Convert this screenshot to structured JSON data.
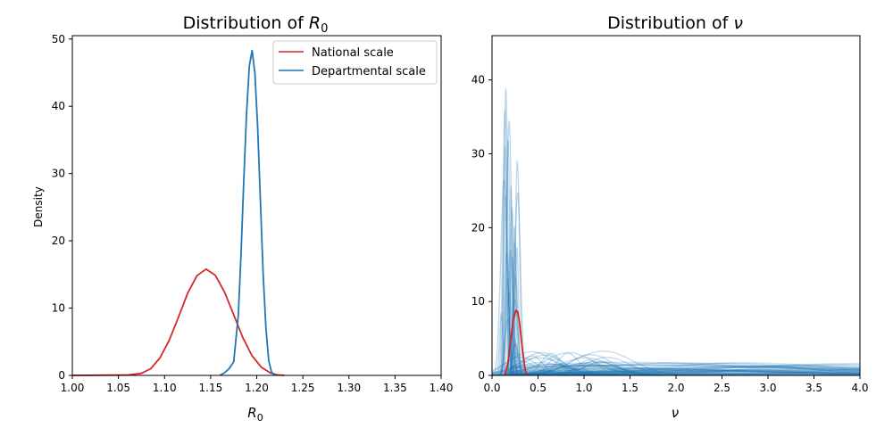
{
  "chart_data": [
    {
      "type": "line",
      "title_prefix": "Distribution of ",
      "title_symbol": "R",
      "title_sub": "0",
      "xlabel_symbol": "R",
      "xlabel_sub": "0",
      "ylabel": "Density",
      "xlim": [
        1.0,
        1.4
      ],
      "ylim": [
        0,
        50.5
      ],
      "xticks": [
        "1.00",
        "1.05",
        "1.10",
        "1.15",
        "1.20",
        "1.25",
        "1.30",
        "1.35",
        "1.40"
      ],
      "yticks": [
        "0",
        "10",
        "20",
        "30",
        "40",
        "50"
      ],
      "legend": {
        "placement": "top-right",
        "entries": [
          "National scale",
          "Departmental scale"
        ]
      },
      "series": [
        {
          "name": "National scale",
          "color": "#d62728",
          "x": [
            1.0,
            1.06,
            1.075,
            1.085,
            1.095,
            1.105,
            1.115,
            1.125,
            1.135,
            1.145,
            1.155,
            1.165,
            1.175,
            1.185,
            1.195,
            1.205,
            1.215,
            1.222,
            1.23
          ],
          "y": [
            0.0,
            0.05,
            0.3,
            1.0,
            2.6,
            5.2,
            8.6,
            12.2,
            14.8,
            15.8,
            14.9,
            12.4,
            9.0,
            5.6,
            2.9,
            1.2,
            0.35,
            0.08,
            0.0
          ]
        },
        {
          "name": "Departmental scale",
          "color": "#1f77b4",
          "x": [
            1.16,
            1.165,
            1.17,
            1.175,
            1.18,
            1.183,
            1.186,
            1.189,
            1.192,
            1.195,
            1.198,
            1.201,
            1.204,
            1.207,
            1.21,
            1.213,
            1.216,
            1.22
          ],
          "y": [
            0.0,
            0.4,
            1.0,
            2.0,
            9.0,
            18.0,
            29.0,
            39.0,
            46.0,
            48.3,
            45.0,
            37.0,
            26.0,
            15.0,
            7.0,
            2.2,
            0.5,
            0.0
          ]
        }
      ]
    },
    {
      "type": "line",
      "title_prefix": "Distribution of ",
      "title_symbol": "ν",
      "xlabel_symbol": "ν",
      "ylabel": "",
      "xlim": [
        0.0,
        4.0
      ],
      "ylim": [
        0,
        46
      ],
      "xticks": [
        "0.0",
        "0.5",
        "1.0",
        "1.5",
        "2.0",
        "2.5",
        "3.0",
        "3.5",
        "4.0"
      ],
      "yticks": [
        "0",
        "10",
        "20",
        "30",
        "40"
      ],
      "background_color": "#1f77b4",
      "series": [
        {
          "color": "#d62728",
          "x": [
            0.14,
            0.17,
            0.2,
            0.23,
            0.26,
            0.28,
            0.3,
            0.33,
            0.36,
            0.38
          ],
          "y": [
            0.0,
            1.5,
            4.5,
            7.5,
            8.8,
            8.6,
            7.0,
            3.5,
            0.8,
            0.0
          ]
        }
      ]
    }
  ]
}
